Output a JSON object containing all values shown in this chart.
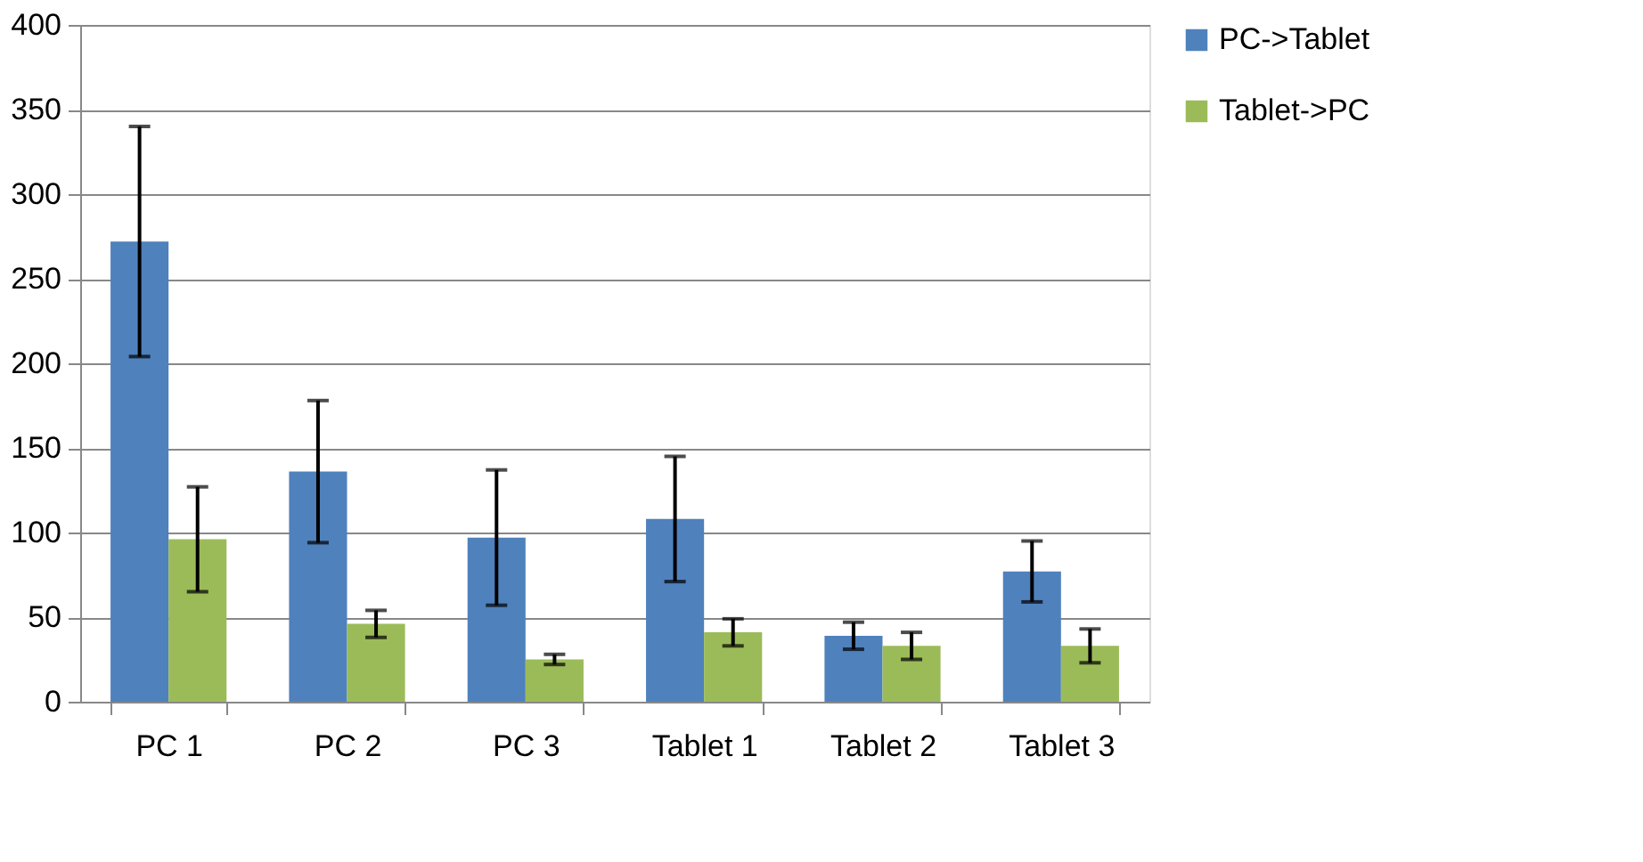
{
  "chart_data": {
    "type": "bar",
    "categories": [
      "PC 1",
      "PC 2",
      "PC 3",
      "Tablet 1",
      "Tablet 2",
      "Tablet 3"
    ],
    "series": [
      {
        "name": "PC->Tablet",
        "color": "#4f81bd",
        "values": [
          272,
          136,
          97,
          108,
          39,
          77
        ],
        "errors": [
          68,
          42,
          40,
          37,
          8,
          18
        ]
      },
      {
        "name": "Tablet->PC",
        "color": "#9bbb59",
        "values": [
          96,
          46,
          25,
          41,
          33,
          33
        ],
        "errors": [
          31,
          8,
          3,
          8,
          8,
          10
        ]
      }
    ],
    "ylim": [
      0,
      400
    ],
    "yticks": [
      0,
      50,
      100,
      150,
      200,
      250,
      300,
      350,
      400
    ],
    "grid": "y",
    "legend": "right"
  }
}
